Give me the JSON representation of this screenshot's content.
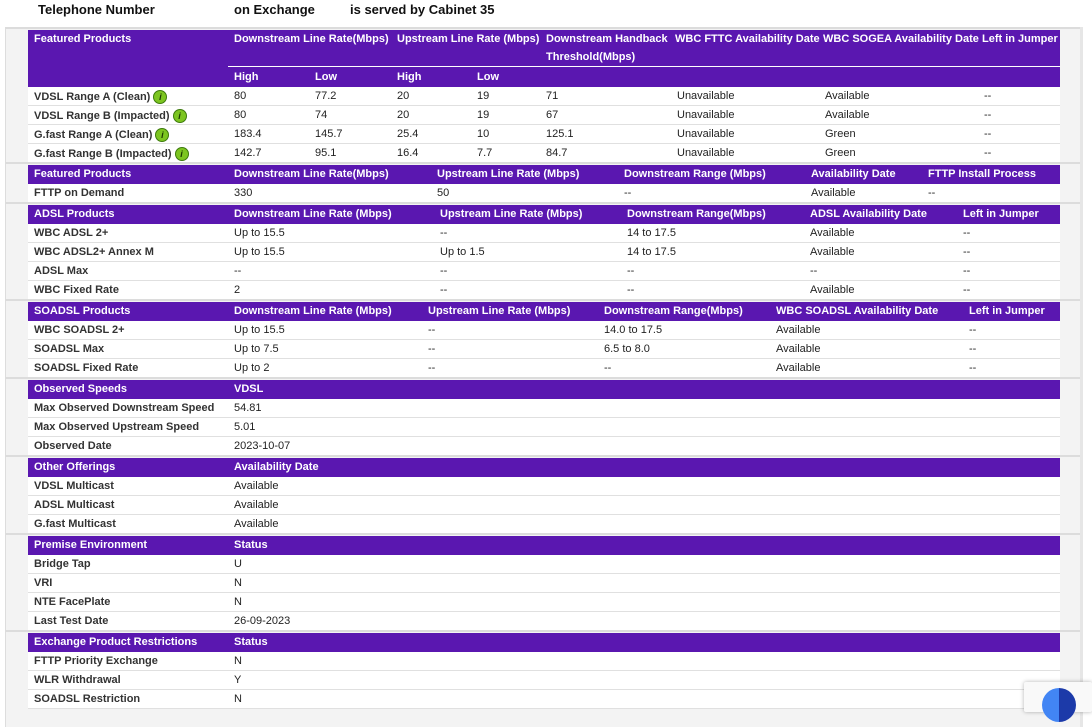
{
  "header": {
    "telephone_label": "Telephone Number",
    "exchange_label": "on Exchange",
    "cabinet_label": "is served by Cabinet 35"
  },
  "colors": {
    "header_bg": "#5a17b0",
    "info_icon": "#7cc520"
  },
  "sections": [
    {
      "id": "featured-vdsl",
      "headers": [
        "Featured Products",
        "Downstream Line Rate(Mbps)",
        "Upstream Line Rate (Mbps)",
        "Downstream Handback",
        "WBC FTTC Availability Date",
        "WBC SOGEA Availability Date",
        "Left in Jumper"
      ],
      "header_line2": "Threshold(Mbps)",
      "subheaders": [
        "High",
        "Low",
        "High",
        "Low"
      ],
      "rows": [
        [
          "VDSL Range A (Clean)",
          "80",
          "77.2",
          "20",
          "19",
          "71",
          "Unavailable",
          "Available",
          "--"
        ],
        [
          "VDSL Range B (Impacted)",
          "80",
          "74",
          "20",
          "19",
          "67",
          "Unavailable",
          "Available",
          "--"
        ],
        [
          "G.fast Range A (Clean)",
          "183.4",
          "145.7",
          "25.4",
          "10",
          "125.1",
          "Unavailable",
          "Green",
          "--"
        ],
        [
          "G.fast Range B (Impacted)",
          "142.7",
          "95.1",
          "16.4",
          "7.7",
          "84.7",
          "Unavailable",
          "Green",
          "--"
        ]
      ],
      "info_icon": "info-speech-bubble-icon"
    },
    {
      "id": "featured-fttp",
      "headers": [
        "Featured Products",
        "Downstream Line Rate(Mbps)",
        "Upstream Line Rate (Mbps)",
        "Downstream Range (Mbps)",
        "Availability Date",
        "FTTP Install Process"
      ],
      "rows": [
        [
          "FTTP on Demand",
          "330",
          "50",
          "--",
          "Available",
          "--"
        ]
      ]
    },
    {
      "id": "adsl",
      "headers": [
        "ADSL Products",
        "Downstream Line Rate (Mbps)",
        "Upstream Line Rate (Mbps)",
        "Downstream Range(Mbps)",
        "ADSL Availability Date",
        "Left in Jumper"
      ],
      "rows": [
        [
          "WBC ADSL 2+",
          "Up to 15.5",
          "--",
          "14 to 17.5",
          "Available",
          "--"
        ],
        [
          "WBC ADSL2+ Annex M",
          "Up to 15.5",
          "Up to 1.5",
          "14 to 17.5",
          "Available",
          "--"
        ],
        [
          "ADSL Max",
          "--",
          "--",
          "--",
          "--",
          "--"
        ],
        [
          "WBC Fixed Rate",
          "2",
          "--",
          "--",
          "Available",
          "--"
        ]
      ]
    },
    {
      "id": "soadsl",
      "headers": [
        "SOADSL Products",
        "Downstream Line Rate (Mbps)",
        "Upstream Line Rate (Mbps)",
        "Downstream Range(Mbps)",
        "WBC SOADSL Availability Date",
        "Left in Jumper"
      ],
      "rows": [
        [
          "WBC SOADSL 2+",
          "Up to 15.5",
          "--",
          "14.0 to 17.5",
          "Available",
          "--"
        ],
        [
          "SOADSL Max",
          "Up to 7.5",
          "--",
          "6.5 to 8.0",
          "Available",
          "--"
        ],
        [
          "SOADSL Fixed Rate",
          "Up to 2",
          "--",
          "--",
          "Available",
          "--"
        ]
      ]
    },
    {
      "id": "observed-speeds",
      "headers": [
        "Observed Speeds",
        "VDSL"
      ],
      "rows": [
        [
          "Max Observed Downstream Speed",
          "54.81"
        ],
        [
          "Max Observed Upstream Speed",
          "5.01"
        ],
        [
          "Observed Date",
          "2023-10-07"
        ]
      ]
    },
    {
      "id": "other-offerings",
      "headers": [
        "Other Offerings",
        "Availability Date"
      ],
      "rows": [
        [
          "VDSL Multicast",
          "Available"
        ],
        [
          "ADSL Multicast",
          "Available"
        ],
        [
          "G.fast Multicast",
          "Available"
        ]
      ]
    },
    {
      "id": "premise-environment",
      "headers": [
        "Premise Environment",
        "Status"
      ],
      "rows": [
        [
          "Bridge Tap",
          "U"
        ],
        [
          "VRI",
          "N"
        ],
        [
          "NTE FacePlate",
          "N"
        ],
        [
          "Last Test Date",
          "26-09-2023"
        ]
      ]
    },
    {
      "id": "exchange-restrictions",
      "headers": [
        "Exchange Product Restrictions",
        "Status"
      ],
      "rows": [
        [
          "FTTP Priority Exchange",
          "N"
        ],
        [
          "WLR Withdrawal",
          "Y"
        ],
        [
          "SOADSL Restriction",
          "N"
        ]
      ]
    }
  ]
}
